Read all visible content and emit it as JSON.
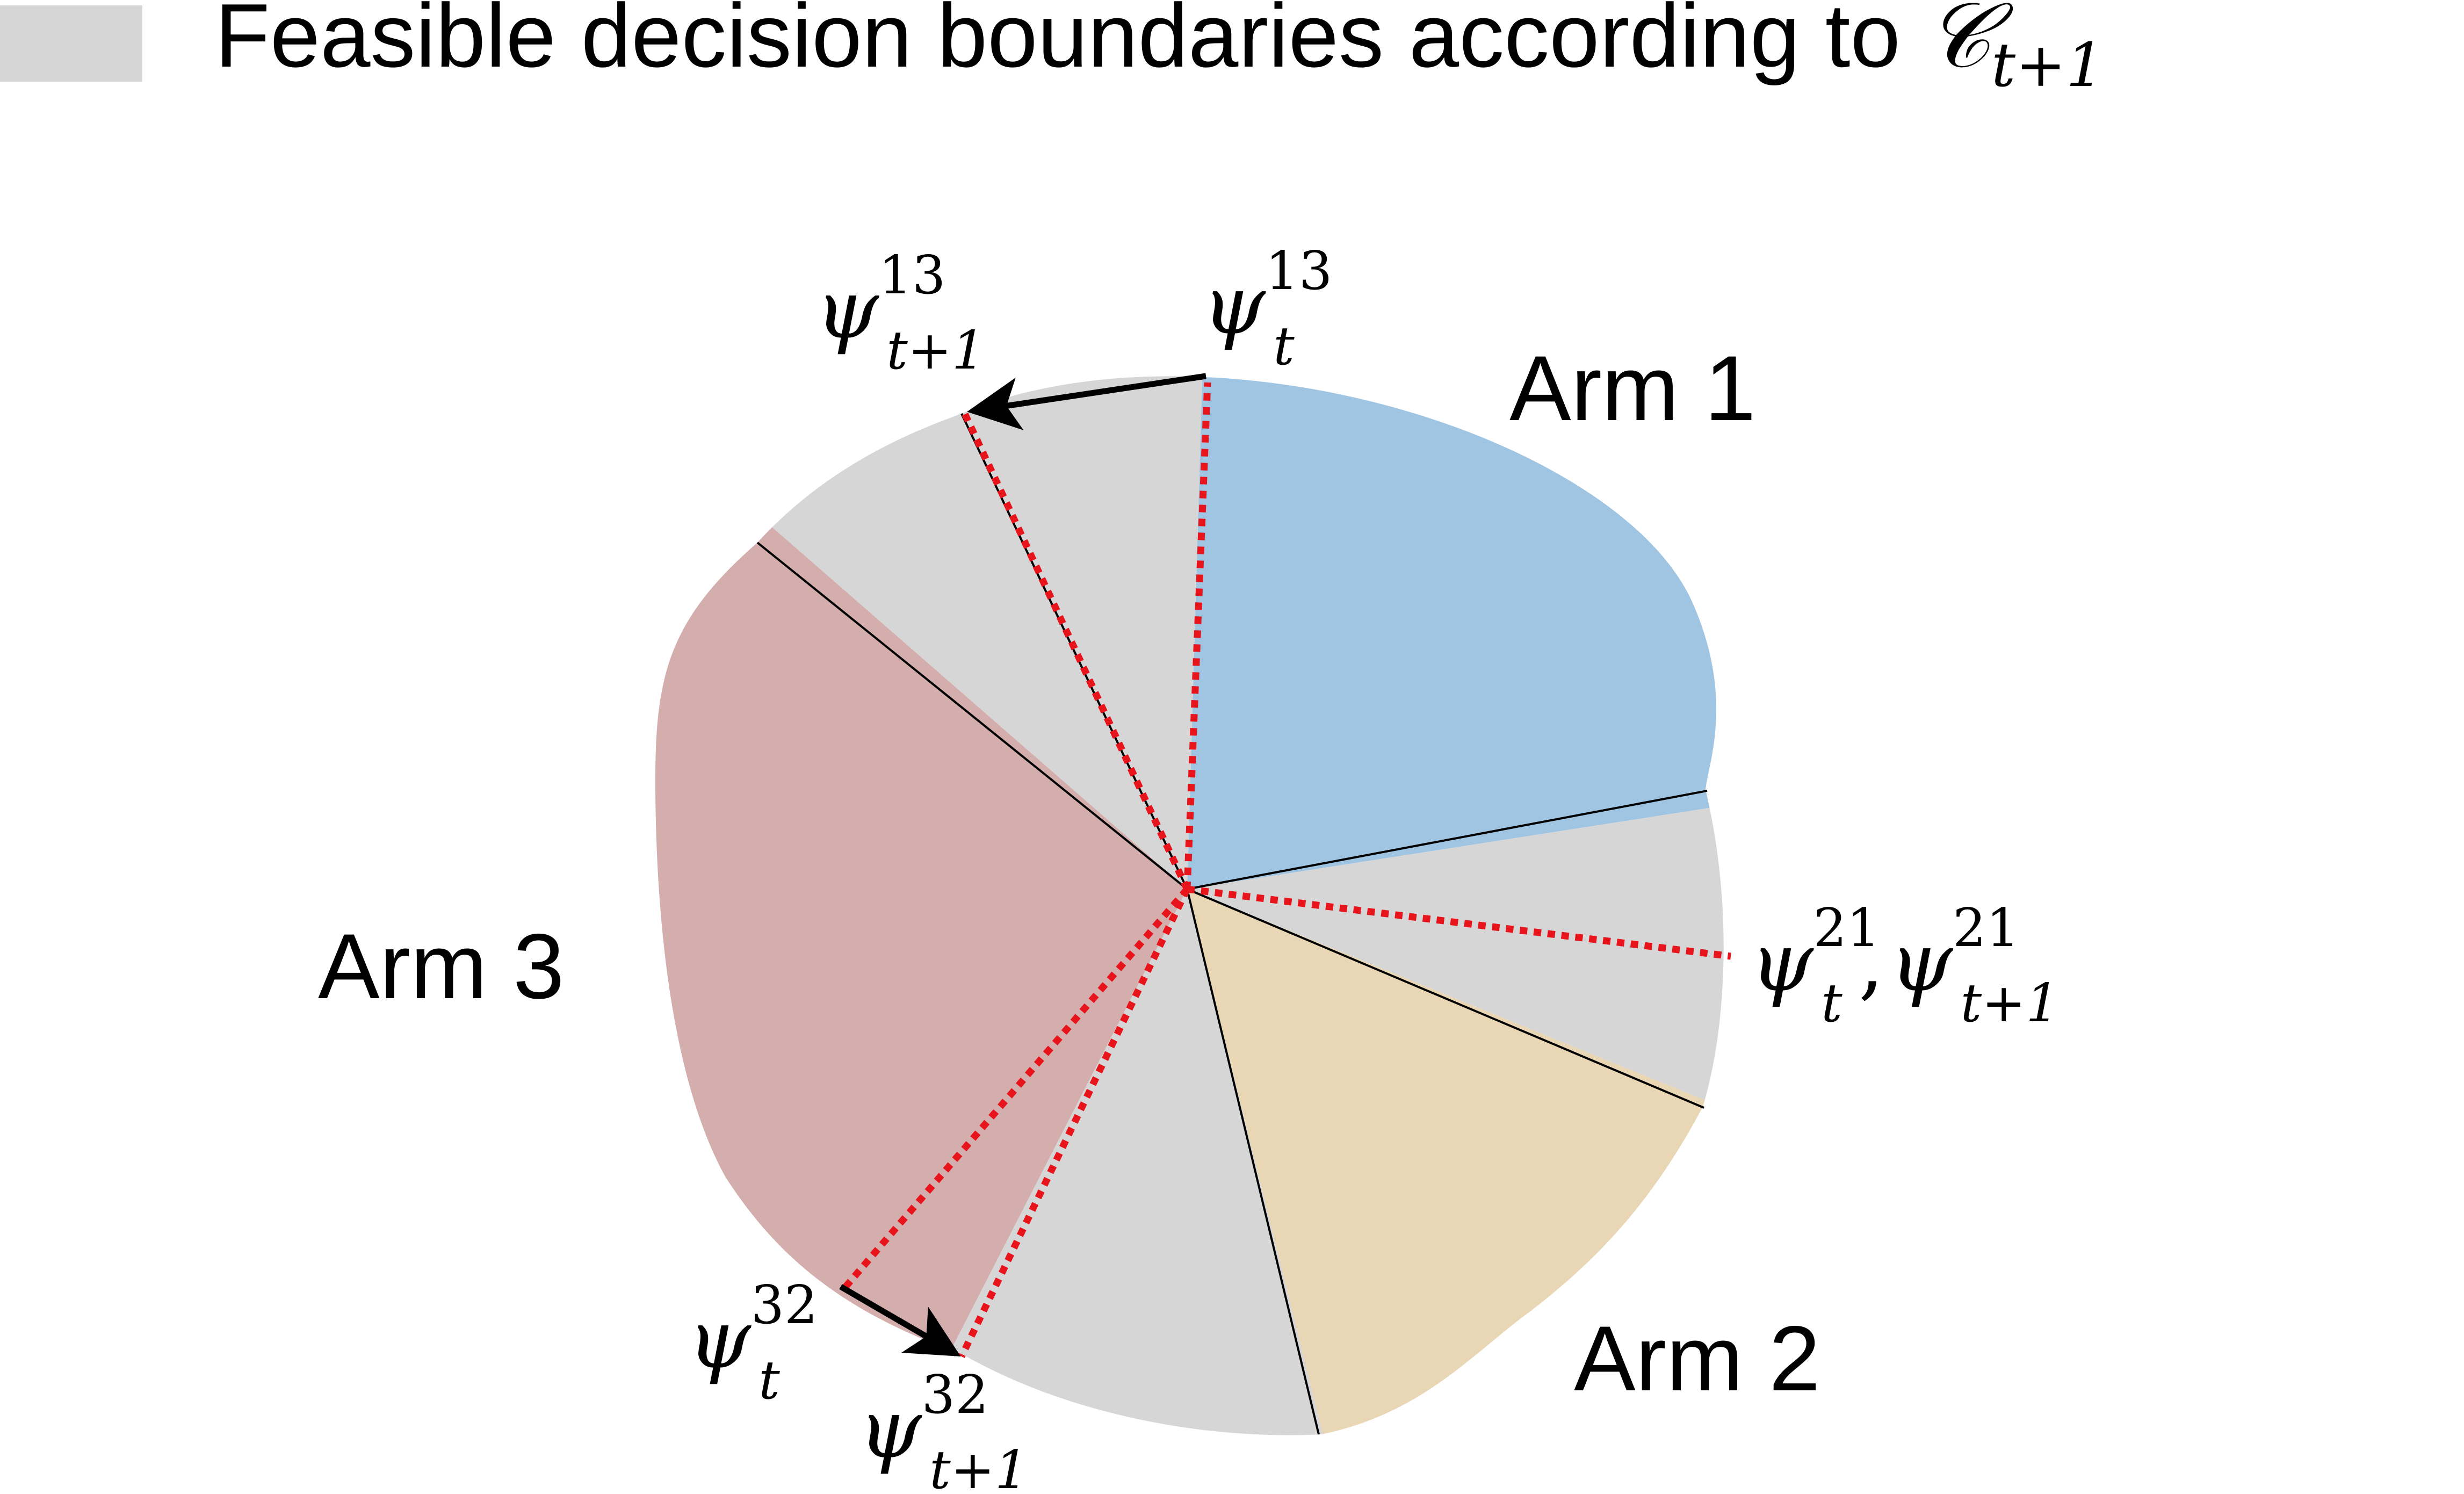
{
  "legend": {
    "text": "Feasible decision boundaries according to ",
    "symbol": "𝒞",
    "subscript": "t+1",
    "swatch_color": "#d6d6d6"
  },
  "regions": {
    "arm1": {
      "label": "Arm 1",
      "color": "#9fc5e3"
    },
    "arm2": {
      "label": "Arm 2",
      "color": "#e8d6b5"
    },
    "arm3": {
      "label": "Arm 3",
      "color": "#d4adad"
    },
    "feasible_color": "#d6d6d6"
  },
  "boundaries": {
    "psi13_t": {
      "base": "ψ",
      "sup": "13",
      "sub": "t"
    },
    "psi13_t1": {
      "base": "ψ",
      "sup": "13",
      "sub": "t+1"
    },
    "psi21_t": {
      "base": "ψ",
      "sup": "21",
      "sub": "t"
    },
    "psi21_sep": ",",
    "psi21_t1": {
      "base": "ψ",
      "sup": "21",
      "sub": "t+1"
    },
    "psi32_t": {
      "base": "ψ",
      "sup": "32",
      "sub": "t"
    },
    "psi32_t1": {
      "base": "ψ",
      "sup": "32",
      "sub": "t+1"
    },
    "dotted_color": "#e8141c",
    "arrow_color": "#000000"
  }
}
